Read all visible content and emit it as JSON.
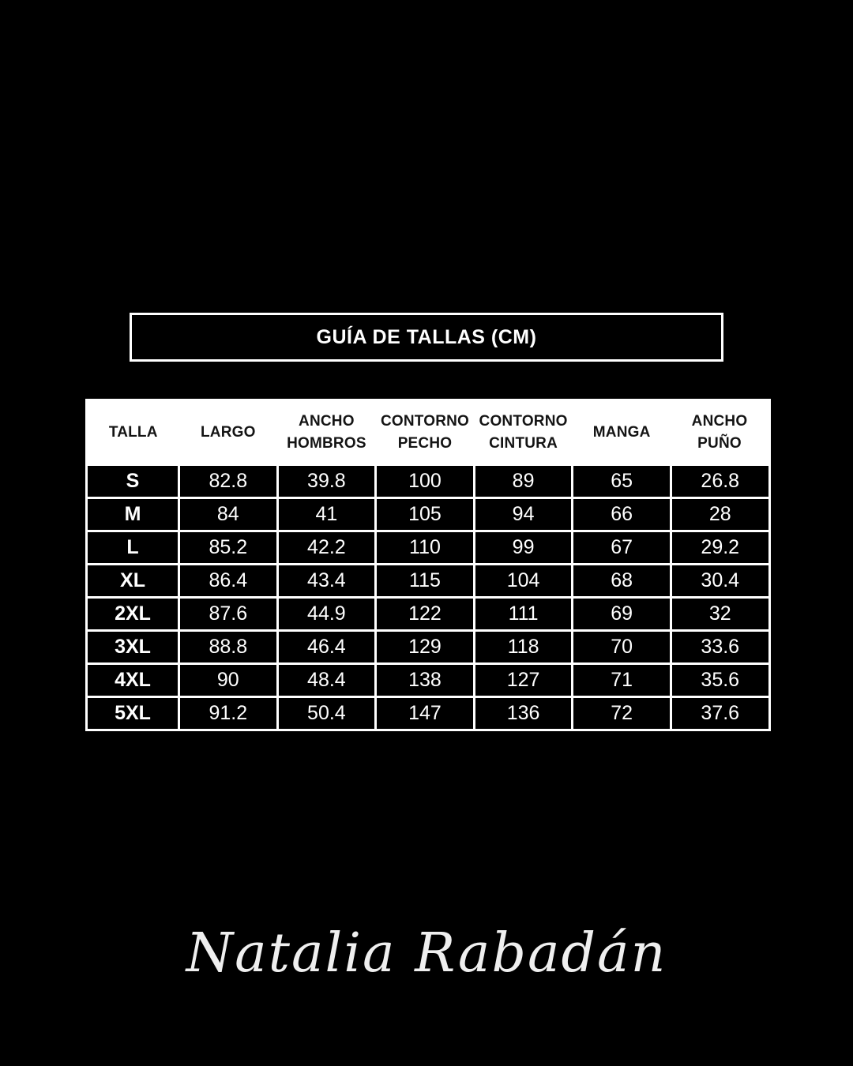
{
  "title": {
    "text": "GUÍA DE TALLAS (CM)"
  },
  "chart_data": {
    "type": "table",
    "title": "GUÍA DE TALLAS (CM)",
    "units": "cm",
    "columns": [
      "TALLA",
      "LARGO",
      "ANCHO HOMBROS",
      "CONTORNO PECHO",
      "CONTORNO CINTURA",
      "MANGA",
      "ANCHO PUÑO"
    ],
    "rows": [
      [
        "S",
        "82.8",
        "39.8",
        "100",
        "89",
        "65",
        "26.8"
      ],
      [
        "M",
        "84",
        "41",
        "105",
        "94",
        "66",
        "28"
      ],
      [
        "L",
        "85.2",
        "42.2",
        "110",
        "99",
        "67",
        "29.2"
      ],
      [
        "XL",
        "86.4",
        "43.4",
        "115",
        "104",
        "68",
        "30.4"
      ],
      [
        "2XL",
        "87.6",
        "44.9",
        "122",
        "111",
        "69",
        "32"
      ],
      [
        "3XL",
        "88.8",
        "46.4",
        "129",
        "118",
        "70",
        "33.6"
      ],
      [
        "4XL",
        "90",
        "48.4",
        "138",
        "127",
        "71",
        "35.6"
      ],
      [
        "5XL",
        "91.2",
        "50.4",
        "147",
        "136",
        "72",
        "37.6"
      ]
    ]
  },
  "table": {
    "display_headers": [
      "TALLA",
      "LARGO",
      "ANCHO\nHOMBROS",
      "CONTORNO\nPECHO",
      "CONTORNO\nCINTURA",
      "MANGA",
      "ANCHO\nPUÑO"
    ]
  },
  "signature": {
    "text": "Natalia Rabadán"
  },
  "colors": {
    "background": "#000000",
    "border": "#ffffff",
    "header_bg": "#ffffff",
    "header_text": "#141414",
    "cell_bg": "#000000",
    "cell_text": "#ffffff"
  }
}
